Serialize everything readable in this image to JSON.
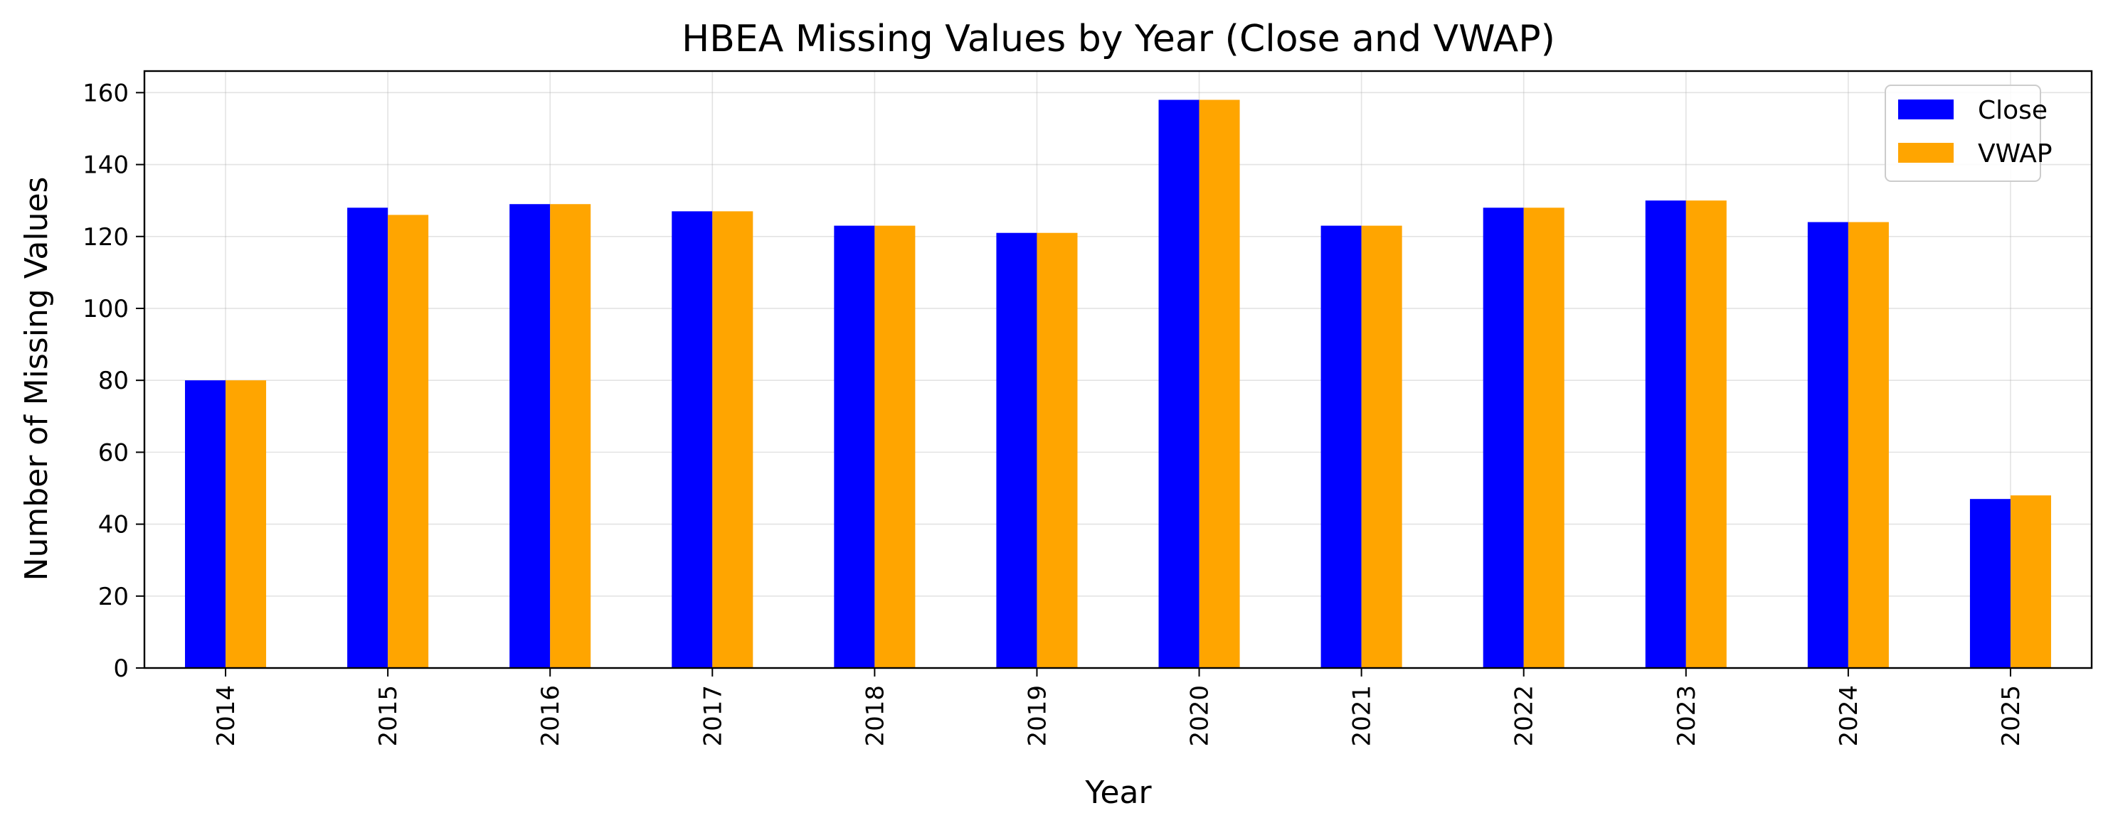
{
  "chart_data": {
    "type": "bar",
    "title": "HBEA Missing Values by Year (Close and VWAP)",
    "xlabel": "Year",
    "ylabel": "Number of Missing Values",
    "categories": [
      "2014",
      "2015",
      "2016",
      "2017",
      "2018",
      "2019",
      "2020",
      "2021",
      "2022",
      "2023",
      "2024",
      "2025"
    ],
    "series": [
      {
        "name": "Close",
        "color": "#0000ff",
        "values": [
          80,
          128,
          129,
          127,
          123,
          121,
          158,
          123,
          128,
          130,
          124,
          47
        ]
      },
      {
        "name": "VWAP",
        "color": "#ffa500",
        "values": [
          80,
          126,
          129,
          127,
          123,
          121,
          158,
          123,
          128,
          130,
          124,
          48
        ]
      }
    ],
    "ylim": [
      0,
      166
    ],
    "yticks": [
      "0",
      "20",
      "40",
      "60",
      "80",
      "100",
      "120",
      "140",
      "160"
    ],
    "grid": true,
    "legend_position": "top-right"
  }
}
